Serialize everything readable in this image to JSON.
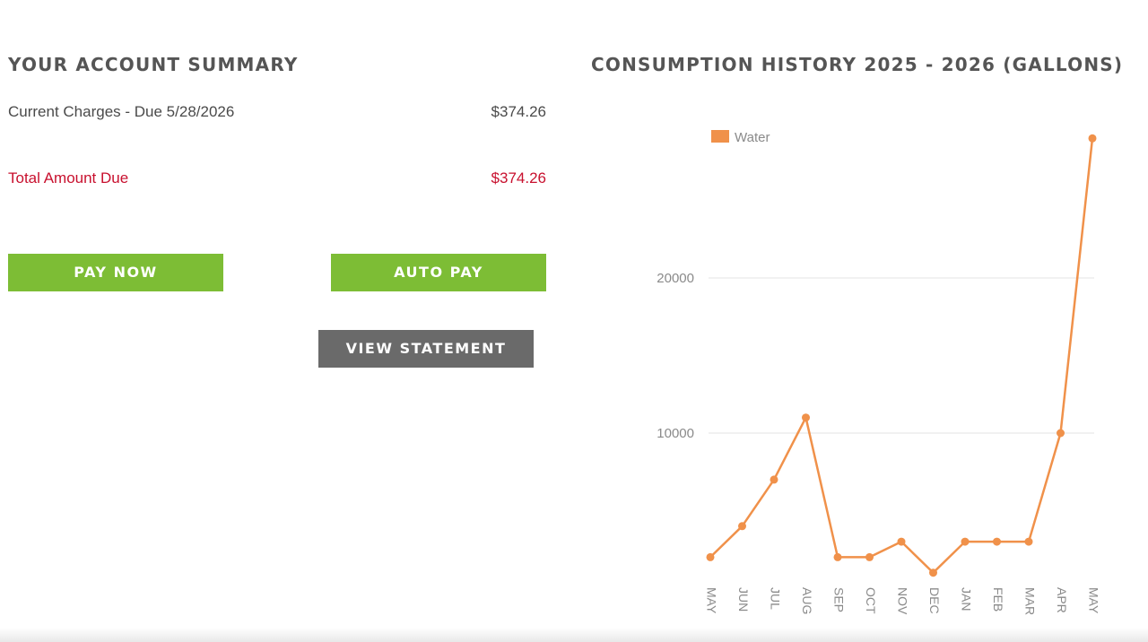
{
  "account_summary": {
    "title": "YOUR ACCOUNT SUMMARY",
    "current_charges_label": "Current Charges - Due 5/28/2026",
    "current_charges_amount": "$374.26",
    "total_due_label": "Total Amount Due",
    "total_due_amount": "$374.26"
  },
  "buttons": {
    "pay_now": "PAY NOW",
    "auto_pay": "AUTO PAY",
    "view_statement": "VIEW STATEMENT"
  },
  "colors": {
    "button_green": "#7dbd35",
    "button_gray": "#6a6a6a",
    "total_due_red": "#c8102e",
    "series_orange": "#f0914a"
  },
  "consumption": {
    "title": "CONSUMPTION HISTORY 2025 - 2026 (GALLONS)"
  },
  "chart_data": {
    "type": "line",
    "categories": [
      "MAY",
      "JUN",
      "JUL",
      "AUG",
      "SEP",
      "OCT",
      "NOV",
      "DEC",
      "JAN",
      "FEB",
      "MAR",
      "APR",
      "MAY"
    ],
    "series": [
      {
        "name": "Water",
        "color": "#f0914a",
        "values": [
          2000,
          4000,
          7000,
          11000,
          2000,
          2000,
          3000,
          1000,
          3000,
          3000,
          3000,
          10000,
          29000
        ]
      }
    ],
    "y_ticks": [
      "10000",
      "20000"
    ],
    "ylim": [
      0,
      30000
    ],
    "grid": true,
    "legend_position": "top-left"
  }
}
